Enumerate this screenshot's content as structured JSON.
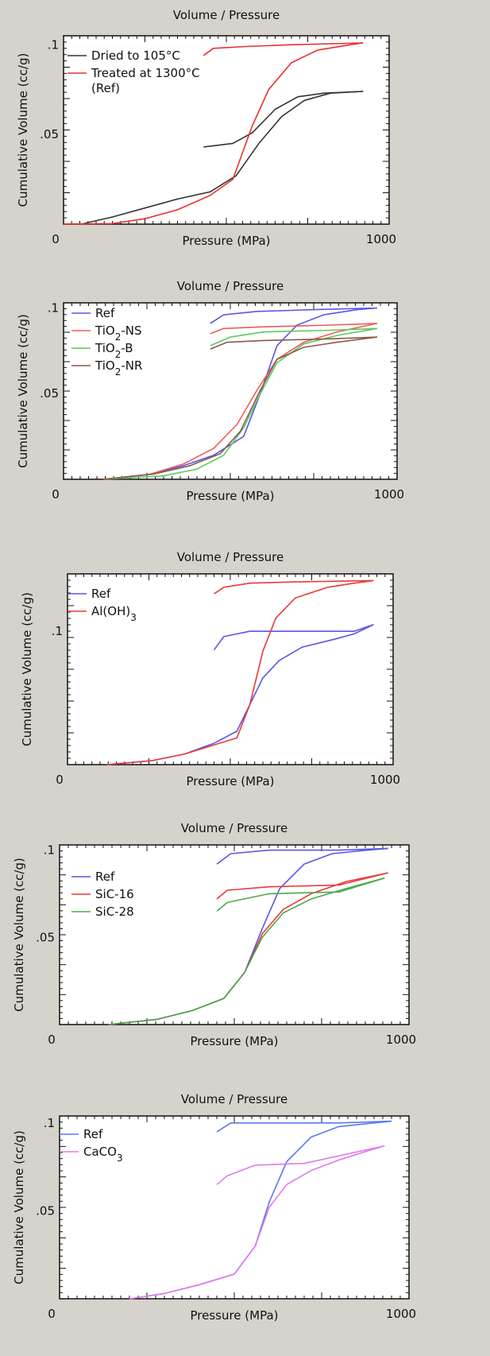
{
  "chart_data": [
    {
      "type": "line",
      "title": "Volume / Pressure",
      "xlabel": "Pressure (MPa)",
      "ylabel": "Cumulative Volume (cc/g)",
      "xlim": [
        0,
        1000
      ],
      "ylim": [
        0,
        0.105
      ],
      "x_tick_labels": [
        "0",
        "1000"
      ],
      "y_tick_labels": [
        ".05",
        ".1"
      ],
      "y_tick_values": [
        0.05,
        0.1
      ],
      "legend_position": "top-left",
      "series": [
        {
          "name": "Dried to 105°C",
          "color": "#333333",
          "values": [
            [
              0,
              0
            ],
            [
              60,
              0.0002
            ],
            [
              150,
              0.004
            ],
            [
              250,
              0.009
            ],
            [
              350,
              0.014
            ],
            [
              450,
              0.018
            ],
            [
              530,
              0.027
            ],
            [
              600,
              0.045
            ],
            [
              670,
              0.06
            ],
            [
              740,
              0.069
            ],
            [
              820,
              0.073
            ],
            [
              920,
              0.074
            ]
          ],
          "extrusion": [
            [
              430,
              0.043
            ],
            [
              520,
              0.045
            ],
            [
              580,
              0.051
            ],
            [
              650,
              0.064
            ],
            [
              720,
              0.071
            ],
            [
              800,
              0.073
            ],
            [
              920,
              0.074
            ]
          ]
        },
        {
          "name": "Treated at 1300°C\n(Ref)",
          "color": "#e83030",
          "values": [
            [
              0,
              0
            ],
            [
              150,
              0.0003
            ],
            [
              250,
              0.003
            ],
            [
              350,
              0.008
            ],
            [
              450,
              0.016
            ],
            [
              520,
              0.025
            ],
            [
              580,
              0.055
            ],
            [
              630,
              0.075
            ],
            [
              700,
              0.09
            ],
            [
              780,
              0.097
            ],
            [
              880,
              0.1
            ],
            [
              920,
              0.101
            ]
          ],
          "extrusion": [
            [
              430,
              0.094
            ],
            [
              460,
              0.098
            ],
            [
              560,
              0.099
            ],
            [
              700,
              0.1
            ],
            [
              920,
              0.101
            ]
          ]
        }
      ]
    },
    {
      "type": "line",
      "title": "Volume / Pressure",
      "xlabel": "Pressure (MPa)",
      "ylabel": "Cumulative Volume (cc/g)",
      "xlim": [
        0,
        1000
      ],
      "ylim": [
        0,
        0.103
      ],
      "x_tick_labels": [
        "0",
        "1000"
      ],
      "y_tick_labels": [
        ".05",
        ".1"
      ],
      "y_tick_values": [
        0.05,
        0.1
      ],
      "legend_position": "top-left",
      "series": [
        {
          "name": "Ref",
          "color": "#5a55e6",
          "values": [
            [
              120,
              0
            ],
            [
              260,
              0.003
            ],
            [
              360,
              0.008
            ],
            [
              450,
              0.014
            ],
            [
              540,
              0.025
            ],
            [
              590,
              0.05
            ],
            [
              640,
              0.078
            ],
            [
              700,
              0.09
            ],
            [
              780,
              0.096
            ],
            [
              880,
              0.099
            ],
            [
              940,
              0.1
            ]
          ],
          "extrusion": [
            [
              440,
              0.091
            ],
            [
              480,
              0.096
            ],
            [
              580,
              0.098
            ],
            [
              750,
              0.099
            ],
            [
              940,
              0.1
            ]
          ]
        },
        {
          "name": "TiO2-NS",
          "color": "#f05a5a",
          "values": [
            [
              120,
              0
            ],
            [
              260,
              0.003
            ],
            [
              360,
              0.009
            ],
            [
              450,
              0.018
            ],
            [
              520,
              0.032
            ],
            [
              580,
              0.052
            ],
            [
              640,
              0.07
            ],
            [
              720,
              0.08
            ],
            [
              820,
              0.086
            ],
            [
              940,
              0.091
            ]
          ],
          "extrusion": [
            [
              440,
              0.085
            ],
            [
              480,
              0.088
            ],
            [
              600,
              0.089
            ],
            [
              800,
              0.09
            ],
            [
              940,
              0.091
            ]
          ]
        },
        {
          "name": "TiO2-B",
          "color": "#5ec95e",
          "values": [
            [
              120,
              0
            ],
            [
              300,
              0.002
            ],
            [
              400,
              0.006
            ],
            [
              480,
              0.014
            ],
            [
              540,
              0.03
            ],
            [
              590,
              0.05
            ],
            [
              640,
              0.068
            ],
            [
              720,
              0.079
            ],
            [
              820,
              0.084
            ],
            [
              940,
              0.088
            ]
          ],
          "extrusion": [
            [
              440,
              0.078
            ],
            [
              500,
              0.083
            ],
            [
              600,
              0.086
            ],
            [
              800,
              0.087
            ],
            [
              940,
              0.088
            ]
          ]
        },
        {
          "name": "TiO2-NR",
          "color": "#8a5a4a",
          "values": [
            [
              120,
              0
            ],
            [
              270,
              0.003
            ],
            [
              380,
              0.008
            ],
            [
              470,
              0.015
            ],
            [
              530,
              0.028
            ],
            [
              590,
              0.052
            ],
            [
              640,
              0.07
            ],
            [
              720,
              0.077
            ],
            [
              820,
              0.08
            ],
            [
              940,
              0.083
            ]
          ],
          "extrusion": [
            [
              440,
              0.076
            ],
            [
              490,
              0.08
            ],
            [
              600,
              0.081
            ],
            [
              800,
              0.082
            ],
            [
              940,
              0.083
            ]
          ]
        }
      ]
    },
    {
      "type": "line",
      "title": "Volume / Pressure",
      "xlabel": "Pressure (MPa)",
      "ylabel": "Cumulative Volume (cc/g)",
      "xlim": [
        0,
        1000
      ],
      "ylim": [
        0,
        0.143
      ],
      "x_tick_labels": [
        "0",
        "1000"
      ],
      "y_tick_labels": [
        ".1"
      ],
      "y_tick_values": [
        0.1
      ],
      "legend_position": "top-left",
      "series": [
        {
          "name": "Ref",
          "color": "#5a55e6",
          "values": [
            [
              120,
              0
            ],
            [
              260,
              0.003
            ],
            [
              360,
              0.008
            ],
            [
              450,
              0.016
            ],
            [
              520,
              0.025
            ],
            [
              560,
              0.045
            ],
            [
              600,
              0.065
            ],
            [
              650,
              0.078
            ],
            [
              720,
              0.088
            ],
            [
              820,
              0.094
            ],
            [
              880,
              0.098
            ],
            [
              940,
              0.105
            ]
          ],
          "extrusion": [
            [
              450,
              0.086
            ],
            [
              480,
              0.096
            ],
            [
              560,
              0.1
            ],
            [
              700,
              0.1
            ],
            [
              880,
              0.1
            ],
            [
              940,
              0.105
            ]
          ]
        },
        {
          "name": "Al(OH)3",
          "color": "#e83a3a",
          "values": [
            [
              120,
              0
            ],
            [
              260,
              0.003
            ],
            [
              360,
              0.008
            ],
            [
              440,
              0.014
            ],
            [
              520,
              0.02
            ],
            [
              560,
              0.045
            ],
            [
              600,
              0.085
            ],
            [
              640,
              0.11
            ],
            [
              700,
              0.125
            ],
            [
              800,
              0.133
            ],
            [
              880,
              0.136
            ],
            [
              940,
              0.138
            ]
          ],
          "extrusion": [
            [
              450,
              0.128
            ],
            [
              480,
              0.133
            ],
            [
              560,
              0.136
            ],
            [
              700,
              0.137
            ],
            [
              940,
              0.138
            ]
          ]
        }
      ]
    },
    {
      "type": "line",
      "title": "Volume / Pressure",
      "xlabel": "Pressure (MPa)",
      "ylabel": "Cumulative Volume (cc/g)",
      "xlim": [
        0,
        1000
      ],
      "ylim": [
        0,
        0.103
      ],
      "x_tick_labels": [
        "0",
        "1000"
      ],
      "y_tick_labels": [
        ".05",
        ".1"
      ],
      "y_tick_values": [
        0.05,
        0.1
      ],
      "legend_position": "center-left",
      "series": [
        {
          "name": "Ref",
          "color": "#5a55e6",
          "values": [
            [
              140,
              0
            ],
            [
              280,
              0.003
            ],
            [
              380,
              0.008
            ],
            [
              470,
              0.015
            ],
            [
              530,
              0.03
            ],
            [
              580,
              0.055
            ],
            [
              630,
              0.078
            ],
            [
              700,
              0.092
            ],
            [
              780,
              0.098
            ],
            [
              880,
              0.1
            ],
            [
              940,
              0.101
            ]
          ],
          "extrusion": [
            [
              450,
              0.092
            ],
            [
              490,
              0.098
            ],
            [
              600,
              0.1
            ],
            [
              800,
              0.1
            ],
            [
              940,
              0.101
            ]
          ]
        },
        {
          "name": "SiC-16",
          "color": "#e83a3a",
          "values": [
            [
              140,
              0
            ],
            [
              280,
              0.003
            ],
            [
              380,
              0.008
            ],
            [
              470,
              0.015
            ],
            [
              530,
              0.03
            ],
            [
              580,
              0.052
            ],
            [
              640,
              0.066
            ],
            [
              720,
              0.075
            ],
            [
              820,
              0.082
            ],
            [
              940,
              0.087
            ]
          ],
          "extrusion": [
            [
              450,
              0.072
            ],
            [
              480,
              0.077
            ],
            [
              600,
              0.079
            ],
            [
              800,
              0.08
            ],
            [
              940,
              0.087
            ]
          ]
        },
        {
          "name": "SiC-28",
          "color": "#4aaa4a",
          "values": [
            [
              140,
              0
            ],
            [
              280,
              0.003
            ],
            [
              380,
              0.008
            ],
            [
              470,
              0.015
            ],
            [
              530,
              0.03
            ],
            [
              580,
              0.05
            ],
            [
              640,
              0.064
            ],
            [
              720,
              0.072
            ],
            [
              820,
              0.078
            ],
            [
              930,
              0.084
            ]
          ],
          "extrusion": [
            [
              450,
              0.065
            ],
            [
              480,
              0.07
            ],
            [
              600,
              0.075
            ],
            [
              800,
              0.076
            ],
            [
              930,
              0.084
            ]
          ]
        }
      ]
    },
    {
      "type": "line",
      "title": "Volume / Pressure",
      "xlabel": "Pressure (MPa)",
      "ylabel": "Cumulative Volume (cc/g)",
      "xlim": [
        0,
        1000
      ],
      "ylim": [
        0,
        0.104
      ],
      "x_tick_labels": [
        "0",
        "1000"
      ],
      "y_tick_labels": [
        ".05",
        ".1"
      ],
      "y_tick_values": [
        0.05,
        0.1
      ],
      "legend_position": "top-left",
      "series": [
        {
          "name": "Ref",
          "color": "#5a78f0",
          "values": [
            [
              200,
              0
            ],
            [
              300,
              0.003
            ],
            [
              400,
              0.008
            ],
            [
              500,
              0.014
            ],
            [
              560,
              0.03
            ],
            [
              600,
              0.055
            ],
            [
              650,
              0.078
            ],
            [
              720,
              0.092
            ],
            [
              800,
              0.098
            ],
            [
              900,
              0.1
            ],
            [
              950,
              0.101
            ]
          ],
          "extrusion": [
            [
              450,
              0.095
            ],
            [
              490,
              0.1
            ],
            [
              600,
              0.1
            ],
            [
              800,
              0.1
            ],
            [
              950,
              0.101
            ]
          ]
        },
        {
          "name": "CaCO3",
          "color": "#e07ae8",
          "values": [
            [
              200,
              0
            ],
            [
              300,
              0.003
            ],
            [
              400,
              0.008
            ],
            [
              500,
              0.014
            ],
            [
              560,
              0.03
            ],
            [
              600,
              0.052
            ],
            [
              650,
              0.065
            ],
            [
              720,
              0.073
            ],
            [
              800,
              0.079
            ],
            [
              880,
              0.084
            ],
            [
              930,
              0.087
            ]
          ],
          "extrusion": [
            [
              450,
              0.065
            ],
            [
              480,
              0.07
            ],
            [
              560,
              0.076
            ],
            [
              700,
              0.077
            ],
            [
              930,
              0.087
            ]
          ]
        }
      ]
    }
  ]
}
